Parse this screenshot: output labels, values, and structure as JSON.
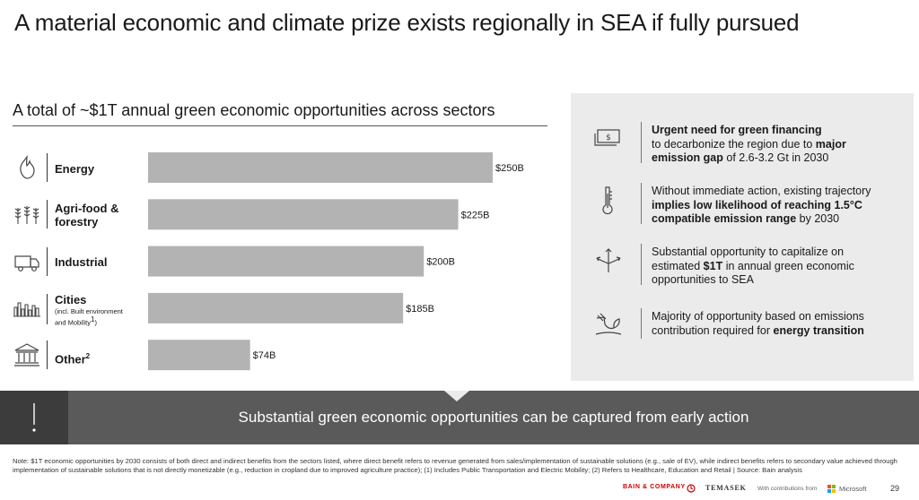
{
  "title": "A material economic and climate prize exists regionally in SEA if fully pursued",
  "subtitle": "A total of ~$1T annual green economic opportunities across sectors",
  "sectors": [
    {
      "icon": "flame-icon",
      "label": "Energy",
      "sub": ""
    },
    {
      "icon": "wheat-icon",
      "label": "Agri-food &",
      "label2": "forestry",
      "sub": ""
    },
    {
      "icon": "truck-icon",
      "label": "Industrial",
      "sub": ""
    },
    {
      "icon": "city-skyline-icon",
      "label": "Cities",
      "sub": "(incl. Built environment",
      "sub2": "and Mobility",
      "sub2_sup": "1",
      "sub2_end": ")"
    },
    {
      "icon": "bank-building-icon",
      "label": "Other",
      "sup": "2",
      "sub": ""
    }
  ],
  "chart_data": {
    "type": "bar",
    "orientation": "horizontal",
    "categories": [
      "Energy",
      "Agri-food & forestry",
      "Industrial",
      "Cities",
      "Other"
    ],
    "values": [
      250,
      225,
      200,
      185,
      74
    ],
    "value_labels": [
      "$250B",
      "$225B",
      "$200B",
      "$185B",
      "$74B"
    ],
    "title": "A total of ~$1T annual green economic opportunities across sectors",
    "xlim": [
      0,
      250
    ],
    "bar_color": "#b3b3b3",
    "grid": false
  },
  "panel": {
    "items": [
      {
        "icon": "cash-icon",
        "parts": [
          {
            "b": true,
            "t": "Urgent need for green financing"
          },
          {
            "br": true
          },
          {
            "t": "to decarbonize the region due to "
          },
          {
            "b": true,
            "t": "major"
          },
          {
            "br": true
          },
          {
            "b": true,
            "t": "emission gap"
          },
          {
            "t": " of 2.6-3.2 Gt in 2030"
          }
        ]
      },
      {
        "icon": "thermometer-icon",
        "parts": [
          {
            "t": "Without immediate action, existing trajectory"
          },
          {
            "br": true
          },
          {
            "b": true,
            "t": "implies low likelihood of reaching 1.5°C"
          },
          {
            "br": true
          },
          {
            "b": true,
            "t": "compatible emission range"
          },
          {
            "t": " by 2030"
          }
        ]
      },
      {
        "icon": "diverging-arrows-icon",
        "parts": [
          {
            "t": "Substantial opportunity to capitalize on"
          },
          {
            "br": true
          },
          {
            "t": "estimated "
          },
          {
            "b": true,
            "t": "$1T"
          },
          {
            "t": " in annual green economic"
          },
          {
            "br": true
          },
          {
            "t": "opportunities to SEA"
          }
        ]
      },
      {
        "icon": "plug-plant-icon",
        "parts": [
          {
            "t": "Majority of opportunity based on emissions"
          },
          {
            "br": true
          },
          {
            "t": "contribution required for "
          },
          {
            "b": true,
            "t": "energy transition"
          }
        ]
      }
    ]
  },
  "banner": {
    "text": "Substantial green economic opportunities can be captured from early action",
    "icon": "exclamation-icon"
  },
  "footnote": "Note: $1T economic opportunities by 2030 consists of both direct and indirect benefits from the sectors listed, where direct benefit refers to revenue generated from sales/implementation of sustainable solutions (e.g., sale of EV), while indirect benefits refers to secondary value achieved through implementation of sustainable solutions that is not directly monetizable (e.g., reduction in cropland due to improved agriculture practice); (1) Includes Public Transportation and Electric Mobility; (2) Refers to Healthcare, Education and Retail | Source: Bain analysis",
  "footer": {
    "bain": "BAIN & COMPANY",
    "temasek": "TEMASEK",
    "contrib": "With contributions from",
    "microsoft": "Microsoft",
    "page": "29"
  },
  "colors": {
    "banner": "#5a5a5a",
    "banner_left": "#3c3c3c",
    "panel": "#ebebeb",
    "bar": "#b3b3b3",
    "bain_red": "#cc0000"
  }
}
